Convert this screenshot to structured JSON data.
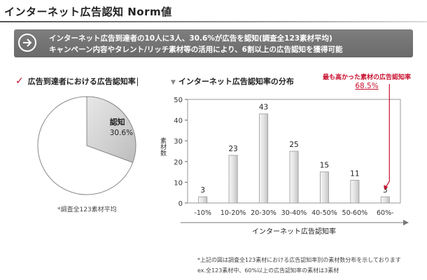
{
  "page": {
    "title": "インターネット広告認知 Norm値"
  },
  "summary": {
    "line1": "インターネット広告到達者の10人に3人、30.6%が広告を認知(調査全123素材平均)",
    "line2": "キャンペーン内容やタレント/リッチ素材等の活用により、6割以上の広告認知を獲得可能"
  },
  "left_panel": {
    "heading": "広告到達者における広告認知率",
    "footnote": "*調査全123素材平均"
  },
  "right_panel": {
    "heading": "インターネット広告認知率の分布",
    "highlight_label": "最も高かった素材の広告認知率",
    "highlight_value": "68.5%"
  },
  "footnotes": {
    "line1": "*上記の図は調査全123素材における広告認知率別の素材数分布を示しております",
    "line2": "ex.全123素材中、60%以上の広告認知率の素材は3素材"
  },
  "colors": {
    "accent_red": "#c8102e",
    "bar_gray": "#e2e2e2",
    "pie_highlight": "#bdbdbd"
  },
  "chart_data": [
    {
      "type": "pie",
      "slices": [
        {
          "label": "認知",
          "value": 30.6,
          "display": "30.6%"
        },
        {
          "label": "",
          "value": 69.4,
          "display": ""
        }
      ]
    },
    {
      "type": "bar",
      "categories": [
        "-10%",
        "10-20%",
        "20-30%",
        "30-40%",
        "40-50%",
        "50-60%",
        "60%-"
      ],
      "values": [
        3,
        23,
        43,
        25,
        15,
        11,
        3
      ],
      "xlabel": "インターネット広告認知率",
      "ylabel": "素材数",
      "ylim": [
        0,
        50
      ],
      "yticks": [
        0,
        10,
        20,
        30,
        40,
        50
      ],
      "grid": false
    }
  ]
}
